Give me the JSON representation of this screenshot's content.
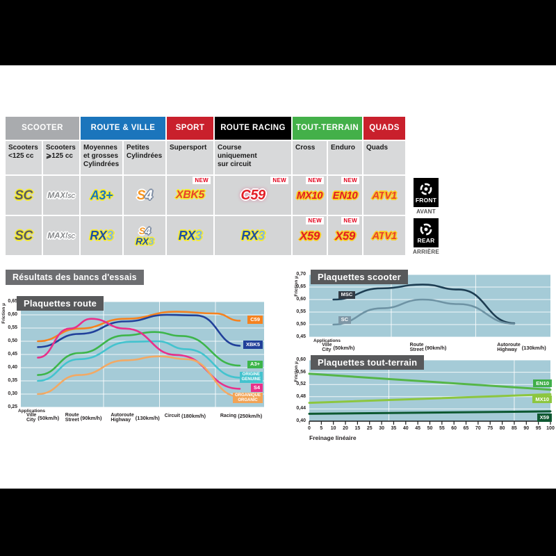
{
  "page": {
    "results_header": "Résultats des bancs d'essais"
  },
  "table": {
    "new_label": "NEW",
    "front_label": "FRONT",
    "avant_label": "AVANT",
    "rear_label": "REAR",
    "arriere_label": "ARRIÈRE",
    "categories": [
      {
        "label": "SCOOTER",
        "color": "#a9abae",
        "span": 2
      },
      {
        "label": "ROUTE & VILLE",
        "color": "#1b75bc",
        "span": 2
      },
      {
        "label": "SPORT",
        "color": "#c9202c",
        "span": 1
      },
      {
        "label": "ROUTE RACING",
        "color": "#000000",
        "span": 1
      },
      {
        "label": "TOUT-TERRAIN",
        "color": "#43b049",
        "span": 2
      },
      {
        "label": "QUADS",
        "color": "#c9202c",
        "span": 1
      }
    ],
    "subheaders": [
      "Scooters\n<125 cc",
      "Scooters\n⩾125 cc",
      "Moyennes\net grosses\nCylindrées",
      "Petites\nCylindrées",
      "Supersport",
      "Course\nuniquement\nsur circuit",
      "Cross",
      "Enduro",
      "Quads"
    ],
    "front_row": [
      {
        "logos": [
          {
            "text": "SC",
            "style": "sc"
          }
        ]
      },
      {
        "logos": [
          {
            "text": "MAXI",
            "sub": "SC",
            "style": "maxisc"
          }
        ]
      },
      {
        "logos": [
          {
            "text": "A3+",
            "style": "a3"
          }
        ]
      },
      {
        "logos": [
          {
            "text": "S4",
            "style": "s4"
          }
        ]
      },
      {
        "logos": [
          {
            "text": "XBK5",
            "style": "xbk5"
          }
        ],
        "new": true
      },
      {
        "logos": [
          {
            "text": "C59",
            "style": "c59"
          }
        ],
        "new": true
      },
      {
        "logos": [
          {
            "text": "MX10",
            "style": "mx10"
          }
        ],
        "new": true
      },
      {
        "logos": [
          {
            "text": "EN10",
            "style": "en10"
          }
        ],
        "new": true
      },
      {
        "logos": [
          {
            "text": "ATV1",
            "style": "atv1"
          }
        ]
      }
    ],
    "rear_row": [
      {
        "logos": [
          {
            "text": "SC",
            "style": "sc"
          }
        ]
      },
      {
        "logos": [
          {
            "text": "MAXI",
            "sub": "SC",
            "style": "maxisc"
          }
        ]
      },
      {
        "logos": [
          {
            "text": "RX3",
            "style": "rx3"
          }
        ]
      },
      {
        "logos": [
          {
            "text": "S4",
            "style": "s4"
          },
          {
            "text": "RX3",
            "style": "rx3"
          }
        ]
      },
      {
        "logos": [
          {
            "text": "RX3",
            "style": "rx3"
          }
        ]
      },
      {
        "logos": [
          {
            "text": "RX3",
            "style": "rx3"
          }
        ]
      },
      {
        "logos": [
          {
            "text": "X59",
            "style": "x59"
          }
        ],
        "new": true
      },
      {
        "logos": [
          {
            "text": "X59",
            "style": "x59"
          }
        ],
        "new": true
      },
      {
        "logos": [
          {
            "text": "ATV1",
            "style": "atv1"
          }
        ]
      }
    ]
  },
  "chart_data": [
    {
      "id": "route",
      "type": "line",
      "title": "Plaquettes route",
      "ylabel": "Friction μ",
      "plot_bg": "#a5cbd7",
      "ylim": [
        0.25,
        0.65
      ],
      "yticks": [
        "0,65",
        "0,60",
        "0,55",
        "0,50",
        "0,45",
        "0,40",
        "0,35",
        "0,30",
        "0,25"
      ],
      "grid_x": [
        0.34,
        0.57,
        0.8
      ],
      "applications_label": "Applications",
      "x_categories": [
        {
          "fr": "Ville",
          "en": "City",
          "speed": "(50km/h)",
          "pos": 0.07
        },
        {
          "fr": "Route",
          "en": "Street",
          "speed": "(90km/h)",
          "pos": 0.235
        },
        {
          "fr": "Autoroute",
          "en": "Highway",
          "speed": "(130km/h)",
          "pos": 0.44
        },
        {
          "fr": "Circuit",
          "en": "",
          "speed": "(180km/h)",
          "pos": 0.65
        },
        {
          "fr": "Racing",
          "en": "",
          "speed": "(250km/h)",
          "pos": 0.88
        }
      ],
      "series": [
        {
          "name": "C59",
          "color": "#f5821f",
          "points": [
            [
              0.07,
              0.5
            ],
            [
              0.24,
              0.548
            ],
            [
              0.43,
              0.585
            ],
            [
              0.64,
              0.612
            ],
            [
              0.8,
              0.605
            ],
            [
              0.9,
              0.578
            ]
          ]
        },
        {
          "name": "XBK5",
          "color": "#21409a",
          "points": [
            [
              0.07,
              0.478
            ],
            [
              0.24,
              0.528
            ],
            [
              0.43,
              0.575
            ],
            [
              0.6,
              0.6
            ],
            [
              0.72,
              0.598
            ],
            [
              0.9,
              0.483
            ]
          ]
        },
        {
          "name": "A3+",
          "color": "#3db54a",
          "points": [
            [
              0.07,
              0.372
            ],
            [
              0.24,
              0.455
            ],
            [
              0.43,
              0.522
            ],
            [
              0.55,
              0.535
            ],
            [
              0.66,
              0.52
            ],
            [
              0.9,
              0.408
            ]
          ]
        },
        {
          "name": "ORIGINE GENUINE",
          "color": "#44c3ce",
          "points": [
            [
              0.07,
              0.35
            ],
            [
              0.24,
              0.432
            ],
            [
              0.45,
              0.498
            ],
            [
              0.56,
              0.5
            ],
            [
              0.68,
              0.47
            ],
            [
              0.9,
              0.362
            ]
          ]
        },
        {
          "name": "S4",
          "color": "#e8308a",
          "points": [
            [
              0.07,
              0.438
            ],
            [
              0.2,
              0.548
            ],
            [
              0.29,
              0.585
            ],
            [
              0.43,
              0.548
            ],
            [
              0.64,
              0.448
            ],
            [
              0.9,
              0.32
            ]
          ]
        },
        {
          "name": "ORGANIQUE ORGANIC",
          "color": "#f2a964",
          "points": [
            [
              0.07,
              0.3
            ],
            [
              0.24,
              0.372
            ],
            [
              0.43,
              0.428
            ],
            [
              0.57,
              0.443
            ],
            [
              0.68,
              0.432
            ],
            [
              0.9,
              0.29
            ]
          ]
        }
      ],
      "labels": [
        {
          "text": "C59",
          "color": "#f5821f",
          "mu": 0.578
        },
        {
          "text": "XBK5",
          "color": "#21409a",
          "mu": 0.483
        },
        {
          "text": "A3+",
          "color": "#3db54a",
          "mu": 0.408
        },
        {
          "text": "ORIGINE",
          "line2": "GENUINE",
          "color": "#44c3ce",
          "mu": 0.362
        },
        {
          "text": "S4",
          "color": "#e8308a",
          "mu": 0.32
        },
        {
          "text": "ORGANIQUE",
          "line2": "ORGANIC",
          "color": "#f2a355",
          "mu": 0.284
        }
      ]
    },
    {
      "id": "scooter",
      "type": "line",
      "title": "Plaquettes scooter",
      "ylabel": "Friction μ",
      "plot_bg": "#a5cbd7",
      "ylim": [
        0.45,
        0.7
      ],
      "yticks": [
        "0,70",
        "0,65",
        "0,60",
        "0,55",
        "0,50",
        "0,45"
      ],
      "grid_x": [
        0.34,
        0.69
      ],
      "applications_label": "Applications",
      "x_categories": [
        {
          "fr": "Ville",
          "en": "City",
          "speed": "(50km/h)",
          "pos": 0.1
        },
        {
          "fr": "Route",
          "en": "Street",
          "speed": "(90km/h)",
          "pos": 0.47
        },
        {
          "fr": "Autoroute",
          "en": "Highway",
          "speed": "(130km/h)",
          "pos": 0.85
        }
      ],
      "series": [
        {
          "name": "MSC",
          "color": "#1d3d52",
          "points": [
            [
              0.1,
              0.6
            ],
            [
              0.3,
              0.645
            ],
            [
              0.47,
              0.66
            ],
            [
              0.62,
              0.64
            ],
            [
              0.85,
              0.505
            ]
          ]
        },
        {
          "name": "SC",
          "color": "#6e93a4",
          "points": [
            [
              0.1,
              0.5
            ],
            [
              0.3,
              0.565
            ],
            [
              0.47,
              0.6
            ],
            [
              0.62,
              0.582
            ],
            [
              0.85,
              0.503
            ]
          ]
        }
      ],
      "labels": [
        {
          "text": "MSC",
          "color": "#333b44",
          "mu": 0.615,
          "xfrac": 0.12
        },
        {
          "text": "SC",
          "color": "#7e97a6",
          "mu": 0.515,
          "xfrac": 0.12
        }
      ]
    },
    {
      "id": "tt",
      "type": "line",
      "title": "Plaquettes tout-terrain",
      "ylabel": "Friction μ",
      "xlabel": "Freinage linéaire",
      "plot_bg": "#a5cbd7",
      "ylim": [
        0.4,
        0.6
      ],
      "yticks": [
        "0,60",
        "0,56",
        "0,52",
        "0,48",
        "0,44",
        "0,40"
      ],
      "grid_x": [
        0.33,
        0.85
      ],
      "xticks": [
        "0",
        "5",
        "10",
        "20",
        "15",
        "25",
        "30",
        "35",
        "40",
        "45",
        "50",
        "55",
        "60",
        "65",
        "70",
        "75",
        "80",
        "85",
        "90",
        "95",
        "100"
      ],
      "series": [
        {
          "name": "EN10",
          "color": "#55b648",
          "points": [
            [
              0.0,
              0.555
            ],
            [
              1.0,
              0.503
            ]
          ]
        },
        {
          "name": "MX10",
          "color": "#8cc63f",
          "points": [
            [
              0.0,
              0.46
            ],
            [
              1.0,
              0.488
            ]
          ]
        },
        {
          "name": "X59",
          "color": "#0d5831",
          "points": [
            [
              0.0,
              0.424
            ],
            [
              1.0,
              0.432
            ]
          ]
        }
      ],
      "labels": [
        {
          "text": "EN10",
          "color": "#3fae49",
          "mu": 0.52
        },
        {
          "text": "MX10",
          "color": "#8cc63f",
          "mu": 0.468
        },
        {
          "text": "X59",
          "color": "#0e5831",
          "mu": 0.408
        }
      ]
    }
  ]
}
